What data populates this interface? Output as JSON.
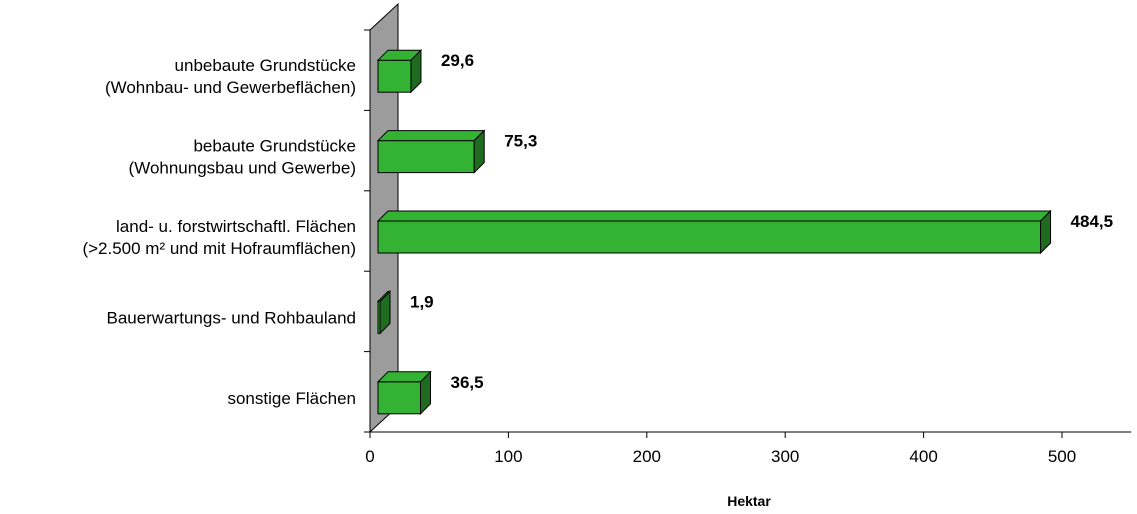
{
  "chart_data": {
    "type": "bar",
    "orientation": "horizontal",
    "categories": [
      [
        "unbebaute Grundstücke",
        "(Wohnbau- und Gewerbeflächen)"
      ],
      [
        "bebaute Grundstücke",
        "(Wohnungsbau und Gewerbe)"
      ],
      [
        "land- u. forstwirtschaftl. Flächen",
        "(>2.500 m² und mit Hofraumflächen)"
      ],
      [
        "Bauerwartungs- und Rohbauland"
      ],
      [
        "sonstige Flächen"
      ]
    ],
    "values": [
      29.6,
      75.3,
      484.5,
      1.9,
      36.5
    ],
    "value_labels": [
      "29,6",
      "75,3",
      "484,5",
      "1,9",
      "36,5"
    ],
    "xlabel": "Hektar",
    "xlim": [
      0,
      550
    ],
    "xticks": [
      0,
      100,
      200,
      300,
      400,
      500
    ],
    "grid": false,
    "legend": "none",
    "bar_color": "#33b233",
    "bar_side_color": "#1f6b1f",
    "wall_color": "#9c9c9c"
  }
}
